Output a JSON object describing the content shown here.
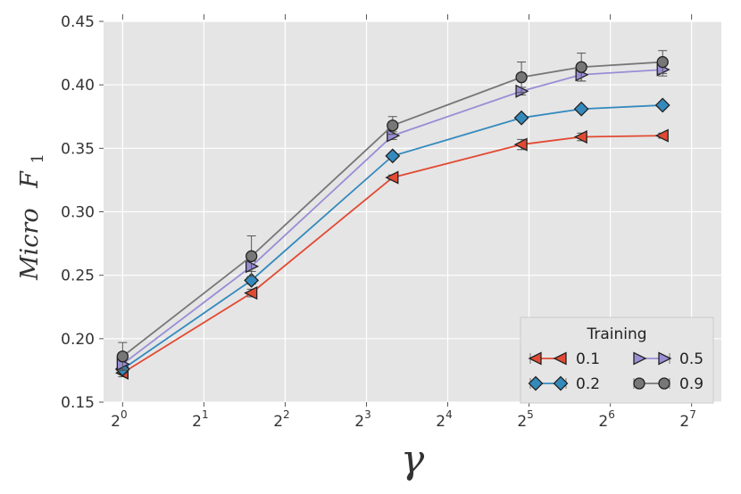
{
  "chart_data": {
    "type": "line",
    "x_scale": "log2",
    "xlim": [
      0.85,
      165
    ],
    "ylim": [
      0.15,
      0.45
    ],
    "grid": true,
    "legend_placement": "lower-right",
    "xlabel": "γ",
    "ylabel": {
      "italic": "Micro",
      "main": "F",
      "sub": "1"
    },
    "x_ticks": [
      {
        "value": 1,
        "base": "2",
        "exp": "0"
      },
      {
        "value": 2,
        "base": "2",
        "exp": "1"
      },
      {
        "value": 4,
        "base": "2",
        "exp": "2"
      },
      {
        "value": 8,
        "base": "2",
        "exp": "3"
      },
      {
        "value": 16,
        "base": "2",
        "exp": "4"
      },
      {
        "value": 32,
        "base": "2",
        "exp": "5"
      },
      {
        "value": 64,
        "base": "2",
        "exp": "6"
      },
      {
        "value": 128,
        "base": "2",
        "exp": "7"
      }
    ],
    "y_ticks": [
      {
        "value": 0.15,
        "label": "0.15"
      },
      {
        "value": 0.2,
        "label": "0.20"
      },
      {
        "value": 0.25,
        "label": "0.25"
      },
      {
        "value": 0.3,
        "label": "0.30"
      },
      {
        "value": 0.35,
        "label": "0.35"
      },
      {
        "value": 0.4,
        "label": "0.40"
      },
      {
        "value": 0.45,
        "label": "0.45"
      }
    ],
    "x": [
      1,
      3,
      10,
      30,
      50,
      100
    ],
    "legend_title": "Training",
    "series": [
      {
        "name": "0.1",
        "color": "#E24A33",
        "marker": "triangle-left",
        "values": [
          0.173,
          0.236,
          0.327,
          0.353,
          0.359,
          0.36
        ],
        "errors": [
          0.003,
          0.003,
          0.002,
          0.004,
          0.003,
          0.002
        ]
      },
      {
        "name": "0.2",
        "color": "#348ABD",
        "marker": "diamond",
        "values": [
          0.176,
          0.246,
          0.344,
          0.374,
          0.381,
          0.384
        ],
        "errors": [
          0.003,
          0.003,
          0.002,
          0.002,
          0.002,
          0.002
        ]
      },
      {
        "name": "0.5",
        "color": "#988ED5",
        "marker": "triangle-right",
        "values": [
          0.18,
          0.257,
          0.36,
          0.395,
          0.408,
          0.412
        ],
        "errors": [
          0.004,
          0.004,
          0.003,
          0.003,
          0.005,
          0.005
        ]
      },
      {
        "name": "0.9",
        "color": "#777777",
        "marker": "circle",
        "values": [
          0.186,
          0.265,
          0.368,
          0.406,
          0.414,
          0.418
        ],
        "errors": [
          0.011,
          0.016,
          0.007,
          0.012,
          0.011,
          0.009
        ]
      }
    ]
  }
}
